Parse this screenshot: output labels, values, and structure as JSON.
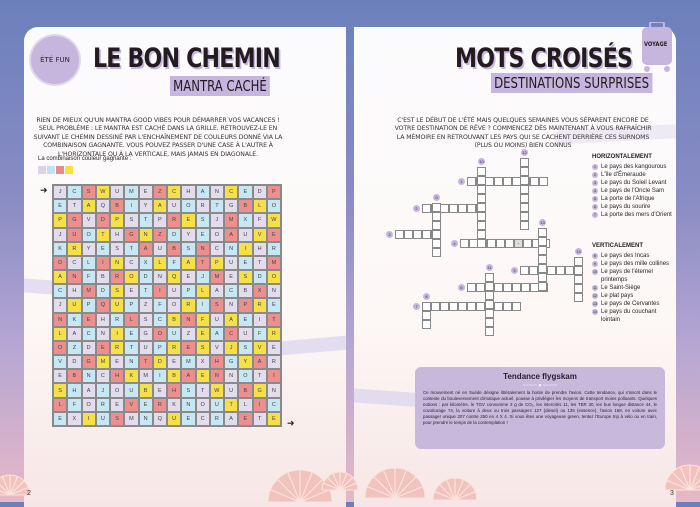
{
  "left": {
    "badge": "ÉTÉ FUN",
    "title": "LE BON CHEMIN",
    "subtitle": "MANTRA CACHÉ",
    "intro": "RIEN DE MIEUX QU'UN MANTRA GOOD VIBES POUR DÉMARRER VOS VACANCES ! SEUL PROBLÈME : LE MANTRA EST CACHÉ DANS LA GRILLE. RETROUVEZ-LE EN SUIVANT LE CHEMIN DESSINÉ PAR L'ENCHAÎNEMENT DE COULEURS DONNÉ VIA LA COMBINAISON GAGNANTE. VOUS POUVEZ PASSER D'UNE CASE À L'AUTRE À L'HORIZONTALE OU À LA VERTICALE, MAIS JAMAIS EN DIAGONALE.",
    "combo_label": "La combinaison couleur gagnante :",
    "combo_colors": [
      "#dcd3e9",
      "#bfe3f3",
      "#ec8a8a",
      "#f7e142"
    ],
    "colors": {
      "L": "#e3dcec",
      "B": "#c7e7f4",
      "R": "#ec8f8f",
      "Y": "#f6e04a"
    },
    "grid": [
      {
        "letters": "JCSWUMEZCHANCEDP",
        "colors": "LBRYLBLRYLBLYBLR"
      },
      {
        "letters": "ETAQBIYAUORTGBLO",
        "colors": "BLYLRBLYLBLBLRYB"
      },
      {
        "letters": "PGVDPSTPRESJMXFW",
        "colors": "YRLRYLBLRYBLRBLY"
      },
      {
        "letters": "JUOTHGNZDYEOAUVE",
        "colors": "LRBYLRYRBLBLRLYR"
      },
      {
        "letters": "KRYESTAUBSNCNIHR",
        "colors": "BYLBLBRLRBRLBYLB"
      },
      {
        "letters": "DCLINCXLFATPUETM",
        "colors": "RLBRYLBYBYRYLBLR"
      },
      {
        "letters": "ANFBRODNQEJMESDO",
        "colors": "YRBLRYBLYLBRLYBY"
      },
      {
        "letters": "CHMDSETIUPLACBXN",
        "colors": "BLRBYLBRLBYLBLRL"
      },
      {
        "letters": "JUPQUPZFORISNPRE",
        "colors": "LYBRYBLBLYBRLRYB"
      },
      {
        "letters": "NKEHRLSCBNFUAEIT",
        "colors": "RBRLBRLBYRYLYBLR"
      },
      {
        "letters": "LACNIEGOUZEACUFR",
        "colors": "YLBLYBLRBLYBRLBY"
      },
      {
        "letters": "OZDERTUPRESVJSVE",
        "colors": "RBLRYBLBYRYLYBYL"
      },
      {
        "letters": "VDGMENTDEMXHGYAR",
        "colors": "BLRYLBRYLBLRBYRL"
      },
      {
        "letters": "EBNCHKMIBAENNOTI",
        "colors": "LRBLRYLBYRYRLBLR"
      },
      {
        "letters": "SHAJOUBEHSTWUBGN",
        "colors": "YBLBLBYLRBLYLRYL"
      },
      {
        "letters": "LFOREVERKNOUTLIC",
        "colors": "RBLBLRBRLBLBYLRB"
      },
      {
        "letters": "EXIUSMNQUECRAETE",
        "colors": "BLYBRLBLYBLBLRLY"
      }
    ],
    "arrow_in": "➜",
    "arrow_out": "➜",
    "page_number": "2"
  },
  "right": {
    "tag": "VOYAGE",
    "title": "MOTS CROISÉS",
    "subtitle": "DESTINATIONS SURPRISES",
    "intro": "C'EST LE DÉBUT DE L'ÉTÉ MAIS QUELQUES SEMAINES VOUS SÉPARENT ENCORE DE VOTRE DESTINATION DE RÊVE ? COMMENCEZ DÈS MAINTENANT À VOUS RAFRAÎCHIR LA MÉMOIRE EN RETROUVANT LES PAYS QUI SE CACHENT DERRIÈRE CES SURNOMS (PLUS OU MOINS) BIEN CONNUS",
    "crossword": {
      "numbers": [
        "1",
        "2",
        "3",
        "4",
        "5",
        "6",
        "7",
        "8",
        "9",
        "10",
        "11",
        "12",
        "13",
        "14"
      ],
      "hyphen": "-"
    },
    "horizontal_title": "HORIZONTALEMENT",
    "horizontal": [
      {
        "n": "1",
        "text": "Le pays des kangourous"
      },
      {
        "n": "2",
        "text": "L'île d'Émeraude"
      },
      {
        "n": "3",
        "text": "Le pays du Soleil Levant"
      },
      {
        "n": "4",
        "text": "Le pays de l'Oncle Sam"
      },
      {
        "n": "5",
        "text": "La porte de l'Afrique"
      },
      {
        "n": "6",
        "text": "Le pays du sourire"
      },
      {
        "n": "7",
        "text": "La porte des mers d'Orient"
      }
    ],
    "vertical_title": "VERTICALEMENT",
    "vertical": [
      {
        "n": "8",
        "text": "Le pays des Incas"
      },
      {
        "n": "9",
        "text": "Le pays des mille collines"
      },
      {
        "n": "10",
        "text": "Le pays de l'éternel printemps"
      },
      {
        "n": "11",
        "text": "Le Saint-Siège"
      },
      {
        "n": "12",
        "text": "Le plat pays"
      },
      {
        "n": "13",
        "text": "Le pays de Cervantes"
      },
      {
        "n": "14",
        "text": "Le pays du couchant lointain"
      }
    ],
    "box": {
      "title": "Tendance flygskam",
      "text": "Ce mouvement né en Suède désigne littéralement la honte de prendre l'avion. Cette tendance, qui s'inscrit dans le contexte du bouleversement climatique actuel, pousse à privilégier les moyens de transport moins polluants. Quelques notions : par kilomètre, le TGV consomme 3 g de CO₂, les intercités 11, les TER 30, les bus longue distance 44, le covoiturage 74, la voiture à deux ou trois passagers 127 (diesel) ou 135 (essence), l'avion 168, en voiture avec passager unique 207 contre 250 en 4 X 4. Si vous êtes une voyageuse green, tentez l'Europe trip à vélo ou en train, pour prendre le temps de la contemplation !"
    },
    "page_number": "3"
  }
}
